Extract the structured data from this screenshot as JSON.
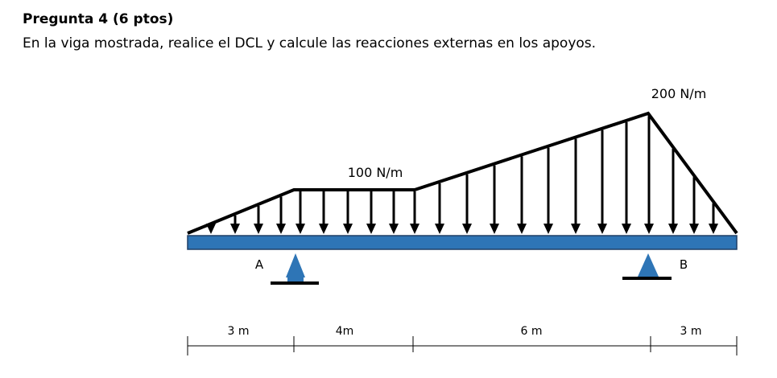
{
  "header": {
    "title": "Pregunta 4 (6 ptos)",
    "question": "En la viga mostrada, realice el DCL y calcule las reacciones externas en los apoyos."
  },
  "loads": [
    {
      "label": "100 N/m"
    },
    {
      "label": "200 N/m"
    }
  ],
  "supports": [
    {
      "label": "A"
    },
    {
      "label": "B"
    }
  ],
  "dimensions": [
    {
      "label": "3 m"
    },
    {
      "label": "4m"
    },
    {
      "label": "6 m"
    },
    {
      "label": "3 m"
    }
  ]
}
